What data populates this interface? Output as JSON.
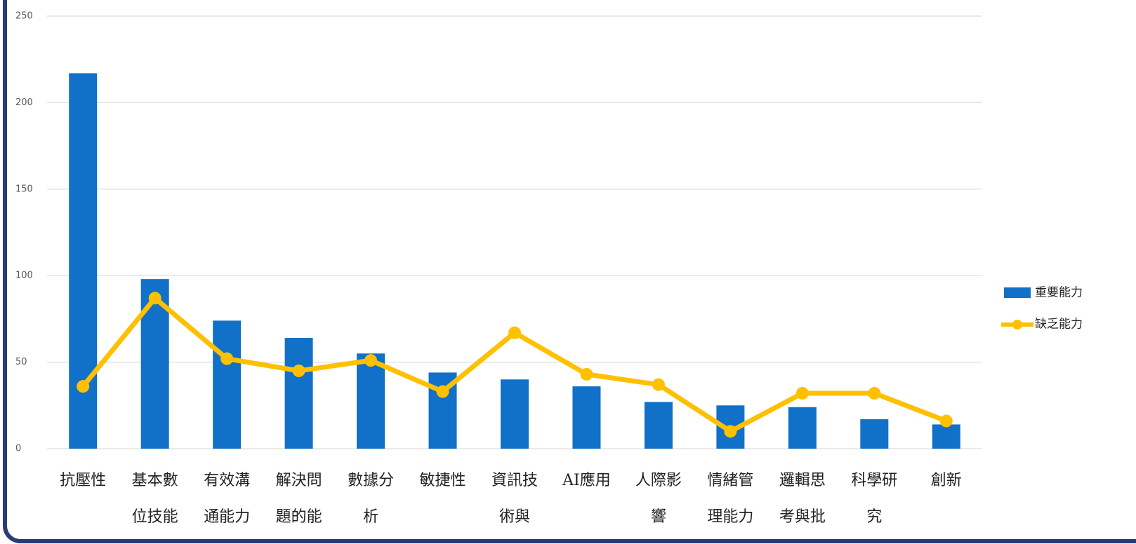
{
  "chart_data": {
    "type": "bar-line",
    "categories": [
      "抗壓性",
      "基本數位技能",
      "有效溝通能力",
      "解決問題的能",
      "數據分析",
      "敏捷性",
      "資訊技術與",
      "AI應用",
      "人際影響",
      "情緒管理能力",
      "邏輯思考與批",
      "科學研究",
      "創新"
    ],
    "series": [
      {
        "name": "重要能力",
        "type": "bar",
        "color": "#1170c8",
        "values": [
          217,
          98,
          74,
          64,
          55,
          44,
          40,
          36,
          27,
          25,
          24,
          17,
          14
        ]
      },
      {
        "name": "缺乏能力",
        "type": "line",
        "color": "#ffc000",
        "values": [
          36,
          87,
          52,
          45,
          51,
          33,
          67,
          43,
          37,
          10,
          32,
          32,
          16
        ]
      }
    ],
    "ylim": [
      0,
      250
    ],
    "yticks": [
      0,
      50,
      100,
      150,
      200,
      250
    ],
    "grid": true,
    "legend": "right"
  }
}
